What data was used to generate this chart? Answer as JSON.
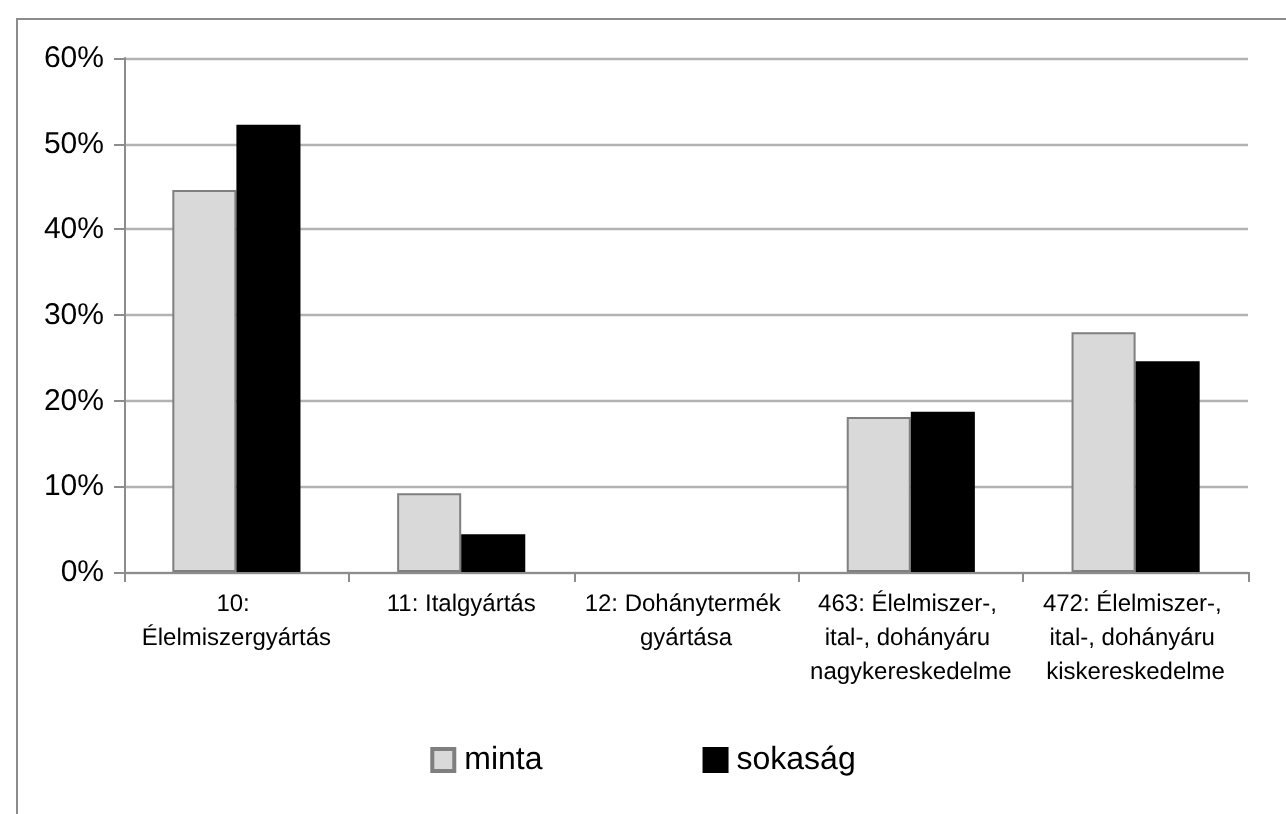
{
  "chart_data": {
    "type": "bar",
    "categories": [
      "10: Élelmiszergyártás",
      "11: Italgyártás",
      "12: Dohánytermék gyártása",
      "463: Élelmiszer-, ital-, dohányáru nagykereskedelme",
      "472: Élelmiszer-, ital-, dohányáru kiskereskedelme"
    ],
    "series": [
      {
        "name": "minta",
        "color": "#d9d9d9",
        "values": [
          44.6,
          9.2,
          null,
          18.1,
          28.0
        ]
      },
      {
        "name": "sokaság",
        "color": "#000000",
        "values": [
          52.2,
          4.4,
          null,
          18.7,
          24.6
        ]
      }
    ],
    "ylim": [
      0,
      60
    ],
    "yticks": [
      {
        "value": 0,
        "label": "0%"
      },
      {
        "value": 10,
        "label": "10%"
      },
      {
        "value": 20,
        "label": "20%"
      },
      {
        "value": 30,
        "label": "30%"
      },
      {
        "value": 40,
        "label": "40%"
      },
      {
        "value": 50,
        "label": "50%"
      },
      {
        "value": 60,
        "label": "60%"
      }
    ],
    "grid": "y",
    "legend": "bottom"
  }
}
